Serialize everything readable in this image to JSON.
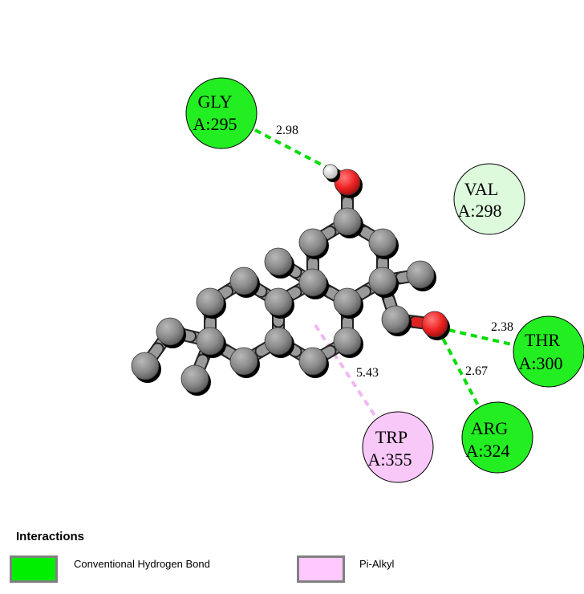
{
  "residues": [
    {
      "id": "gly295",
      "line1": "GLY",
      "line2": "A:295",
      "color": "#22ee22",
      "stroke": "#000000"
    },
    {
      "id": "val298",
      "line1": "VAL",
      "line2": "A:298",
      "color": "#ddfadd",
      "stroke": "#000000"
    },
    {
      "id": "thr300",
      "line1": "THR",
      "line2": "A:300",
      "color": "#22ee22",
      "stroke": "#000000"
    },
    {
      "id": "arg324",
      "line1": "ARG",
      "line2": "A:324",
      "color": "#22ee22",
      "stroke": "#000000"
    },
    {
      "id": "trp355",
      "line1": "TRP",
      "line2": "A:355",
      "color": "#f8c8f8",
      "stroke": "#000000"
    }
  ],
  "interactions": [
    {
      "residue": "gly295",
      "type": "Conventional Hydrogen Bond",
      "distance": "2.98"
    },
    {
      "residue": "thr300",
      "type": "Conventional Hydrogen Bond",
      "distance": "2.38"
    },
    {
      "residue": "arg324",
      "type": "Conventional Hydrogen Bond",
      "distance": "2.67"
    },
    {
      "residue": "trp355",
      "type": "Pi-Alkyl",
      "distance": "5.43"
    }
  ],
  "legend": {
    "title": "Interactions",
    "items": [
      {
        "label": "Conventional Hydrogen Bond",
        "color": "#00ee00"
      },
      {
        "label": "Pi-Alkyl",
        "color": "#ffc8ff"
      }
    ]
  },
  "colors": {
    "hbond_line": "#00dd00",
    "pialkyl_line": "#f0b8f0",
    "carbon": "#8c8c8c",
    "oxygen": "#ee2222",
    "hydrogen": "#ffffff"
  }
}
